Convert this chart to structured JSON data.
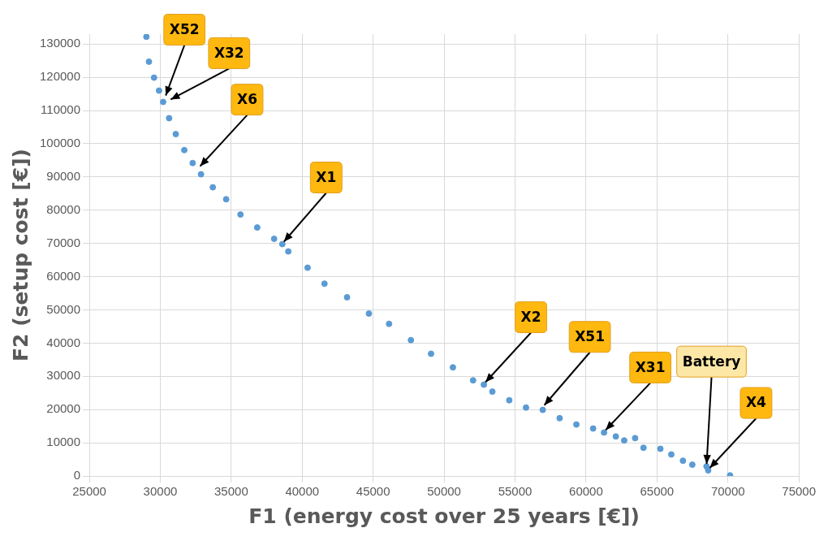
{
  "chart_data": {
    "type": "scatter",
    "xlabel": "F1 (energy cost over 25 years [€])",
    "ylabel": "F2 (setup cost [€])",
    "color": "#5b9bd5",
    "marker": "circle",
    "grid": true,
    "legend": false,
    "xlim": [
      25000,
      75000
    ],
    "xticks": [
      25000,
      30000,
      35000,
      40000,
      45000,
      50000,
      55000,
      60000,
      65000,
      70000,
      75000
    ],
    "ylim": [
      0,
      133000
    ],
    "yticks": [
      0,
      10000,
      20000,
      30000,
      40000,
      50000,
      60000,
      70000,
      80000,
      90000,
      100000,
      110000,
      120000,
      130000
    ],
    "x": [
      29020,
      29200,
      29560,
      29910,
      30200,
      30620,
      31090,
      31690,
      32280,
      32870,
      33700,
      34640,
      35650,
      36830,
      38020,
      39020,
      40380,
      41570,
      43160,
      44700,
      46120,
      47660,
      49080,
      50620,
      52040,
      53400,
      54590,
      55770,
      56950,
      58140,
      59320,
      60500,
      61270,
      62100,
      62690,
      63460,
      64050,
      65240,
      66010,
      66830,
      67490,
      68490,
      68610,
      70150,
      38600,
      52800
    ],
    "values": [
      132200,
      124700,
      119900,
      116000,
      112600,
      107700,
      102900,
      98100,
      94200,
      90800,
      86900,
      83300,
      78700,
      74800,
      71400,
      67600,
      62700,
      57900,
      53800,
      48900,
      45800,
      40900,
      36800,
      32700,
      28800,
      25400,
      22800,
      20600,
      19900,
      17400,
      15500,
      14300,
      13100,
      11900,
      10700,
      11400,
      8500,
      8200,
      6500,
      4600,
      3400,
      2900,
      1700,
      200,
      69800,
      27500
    ],
    "annotations": [
      {
        "text": "X52",
        "x": 30270,
        "y": 113800
      },
      {
        "text": "X32",
        "x": 30620,
        "y": 112600
      },
      {
        "text": "X6",
        "x": 32690,
        "y": 92500
      },
      {
        "text": "X1",
        "x": 38600,
        "y": 69800
      },
      {
        "text": "X2",
        "x": 52800,
        "y": 27500
      },
      {
        "text": "X51",
        "x": 56950,
        "y": 20600
      },
      {
        "text": "X31",
        "x": 61270,
        "y": 13100
      },
      {
        "text": "Battery",
        "x": 68500,
        "y": 2900
      },
      {
        "text": "X4",
        "x": 68610,
        "y": 1700
      }
    ]
  }
}
